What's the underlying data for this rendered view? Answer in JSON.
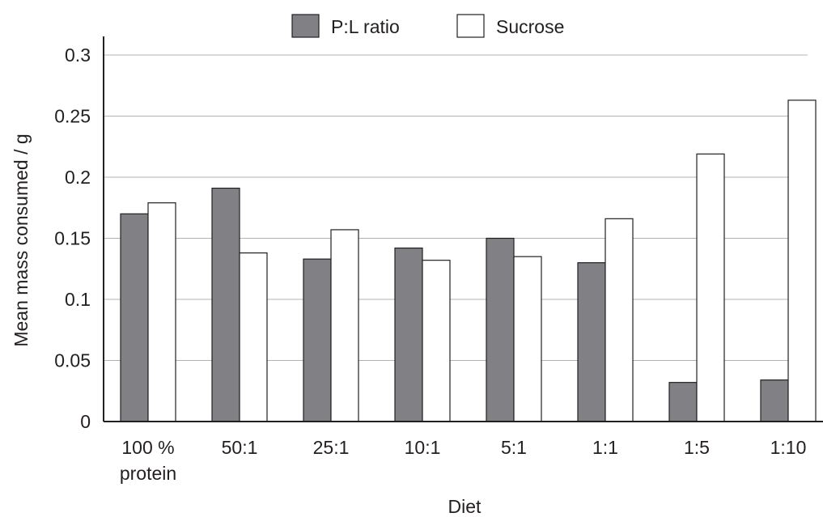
{
  "chart_data": {
    "type": "bar",
    "xlabel": "Diet",
    "ylabel": "Mean mass consumed / g",
    "categories": [
      [
        "100 %",
        "protein"
      ],
      [
        "50:1"
      ],
      [
        "25:1"
      ],
      [
        "10:1"
      ],
      [
        "5:1"
      ],
      [
        "1:1"
      ],
      [
        "1:5"
      ],
      [
        "1:10"
      ]
    ],
    "series": [
      {
        "name": "P:L ratio",
        "color": "#808085",
        "values": [
          0.17,
          0.191,
          0.133,
          0.142,
          0.15,
          0.13,
          0.032,
          0.034
        ]
      },
      {
        "name": "Sucrose",
        "color": "#ffffff",
        "values": [
          0.179,
          0.138,
          0.157,
          0.132,
          0.135,
          0.166,
          0.219,
          0.263
        ]
      }
    ],
    "ylim": [
      0,
      0.3
    ],
    "yticks": [
      "0",
      "0.05",
      "0.1",
      "0.15",
      "0.2",
      "0.25",
      "0.3"
    ],
    "ytick_values": [
      0,
      0.05,
      0.1,
      0.15,
      0.2,
      0.25,
      0.3
    ],
    "grid": true,
    "legend_position": "top-center"
  }
}
